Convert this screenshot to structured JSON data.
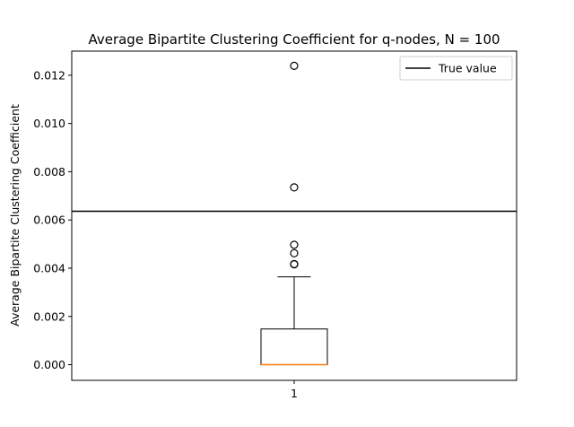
{
  "chart_data": {
    "type": "box",
    "title": "Average Bipartite Clustering Coefficient for q-nodes, N = 100",
    "xlabel": "",
    "ylabel": "Average Bipartite Clustering Coefficient",
    "categories": [
      "1"
    ],
    "ylim": [
      -0.00065,
      0.013
    ],
    "yticks": [
      0.0,
      0.002,
      0.004,
      0.006,
      0.008,
      0.01,
      0.012
    ],
    "ytick_labels": [
      "0.000",
      "0.002",
      "0.004",
      "0.006",
      "0.008",
      "0.010",
      "0.012"
    ],
    "box": {
      "position": 1,
      "q1": 0.0,
      "median": 0.0,
      "q3": 0.00148,
      "whisker_low": 0.0,
      "whisker_high": 0.00364,
      "outliers": [
        0.00416,
        0.00417,
        0.00462,
        0.00497,
        0.00735,
        0.01239
      ]
    },
    "reference_line": {
      "name": "True value",
      "value": 0.00636
    },
    "legend": {
      "entries": [
        "True value"
      ],
      "position": "top-right"
    },
    "grid": false,
    "colors": {
      "box": "#000000",
      "median": "#ff7f0e",
      "reference": "#000000",
      "outlier": "#000000"
    }
  }
}
